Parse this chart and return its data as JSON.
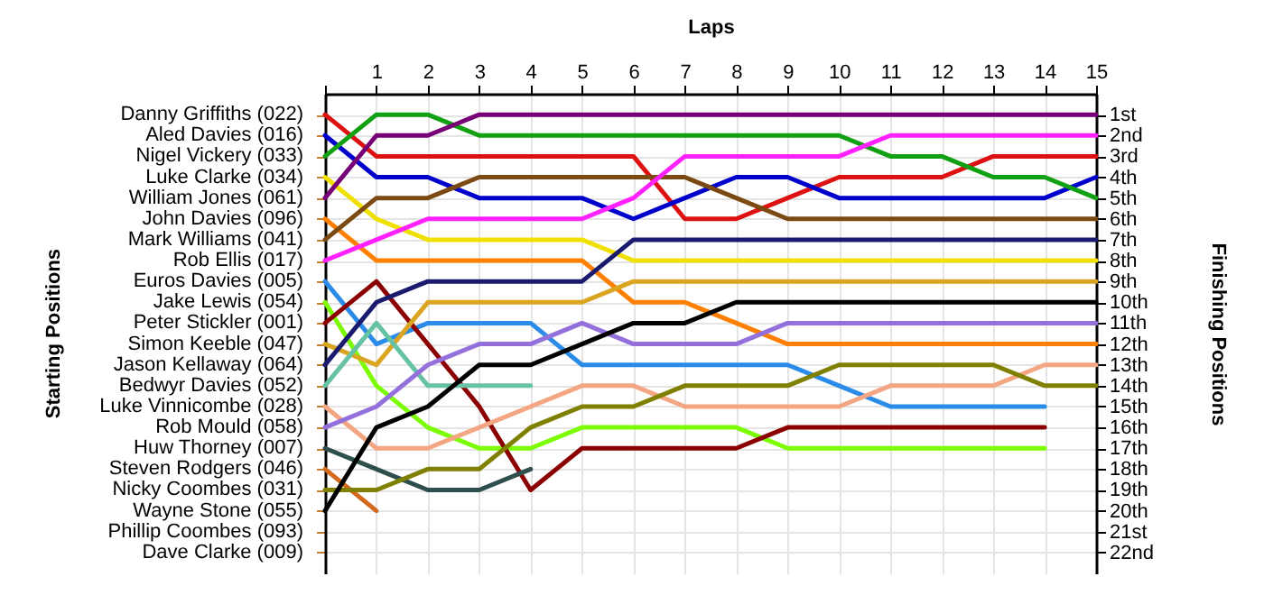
{
  "chart_data": {
    "type": "line",
    "xlabel": "Laps",
    "ylabel": "Finishing Positions",
    "x": [
      0,
      1,
      2,
      3,
      4,
      5,
      6,
      7,
      8,
      9,
      10,
      11,
      12,
      13,
      14,
      15
    ],
    "xlim": [
      0,
      15
    ],
    "xticks": [
      {
        "value": 0,
        "label": null
      },
      1,
      2,
      3,
      4,
      5,
      6,
      7,
      8,
      9,
      10,
      11,
      12,
      13,
      14,
      15
    ],
    "ylim": [
      23,
      0
    ],
    "yticks": [
      {
        "value": 1,
        "label": "1st"
      },
      {
        "value": 2,
        "label": "2nd"
      },
      {
        "value": 3,
        "label": "3rd"
      },
      {
        "value": 4,
        "label": "4th"
      },
      {
        "value": 5,
        "label": "5th"
      },
      {
        "value": 6,
        "label": "6th"
      },
      {
        "value": 7,
        "label": "7th"
      },
      {
        "value": 8,
        "label": "8th"
      },
      {
        "value": 9,
        "label": "9th"
      },
      {
        "value": 10,
        "label": "10th"
      },
      {
        "value": 11,
        "label": "11th"
      },
      {
        "value": 12,
        "label": "12th"
      },
      {
        "value": 13,
        "label": "13th"
      },
      {
        "value": 14,
        "label": "14th"
      },
      {
        "value": 15,
        "label": "15th"
      },
      {
        "value": 16,
        "label": "16th"
      },
      {
        "value": 17,
        "label": "17th"
      },
      {
        "value": 18,
        "label": "18th"
      },
      {
        "value": 19,
        "label": "19th"
      },
      {
        "value": 20,
        "label": "20th"
      },
      {
        "value": 21,
        "label": "21st"
      },
      {
        "value": 22,
        "label": "22nd"
      }
    ],
    "grid": true,
    "line_style": "solid",
    "annotations": [
      "Starting Positions",
      "Phillip Coombes (093)",
      "Dave Clarke (009)"
    ],
    "series": [
      {
        "name": "Danny Griffiths (022)",
        "color": "#dd1111",
        "values": [
          1,
          3,
          3,
          3,
          3,
          3,
          3,
          6,
          6,
          5,
          4,
          4,
          4,
          3,
          3,
          3
        ]
      },
      {
        "name": "Aled Davies (016)",
        "color": "#0000cc",
        "values": [
          2,
          4,
          4,
          5,
          5,
          5,
          6,
          5,
          4,
          4,
          5,
          5,
          5,
          5,
          5,
          4
        ]
      },
      {
        "name": "Nigel Vickery (033)",
        "color": "#11a011",
        "values": [
          3,
          1,
          1,
          2,
          2,
          2,
          2,
          2,
          2,
          2,
          2,
          3,
          3,
          4,
          4,
          5
        ]
      },
      {
        "name": "Luke Clarke (034)",
        "color": "#f0e000",
        "values": [
          4,
          6,
          7,
          7,
          7,
          7,
          8,
          8,
          8,
          8,
          8,
          8,
          8,
          8,
          8,
          8
        ]
      },
      {
        "name": "William Jones (061)",
        "color": "#770077",
        "values": [
          5,
          2,
          2,
          1,
          1,
          1,
          1,
          1,
          1,
          1,
          1,
          1,
          1,
          1,
          1,
          1
        ]
      },
      {
        "name": "John Davies (096)",
        "color": "#ff7f00",
        "values": [
          6,
          8,
          8,
          8,
          8,
          8,
          10,
          10,
          11,
          12,
          12,
          12,
          12,
          12,
          12,
          12
        ]
      },
      {
        "name": "Mark Williams (041)",
        "color": "#7b4a12",
        "values": [
          7,
          5,
          5,
          4,
          4,
          4,
          4,
          4,
          5,
          6,
          6,
          6,
          6,
          6,
          6,
          6
        ]
      },
      {
        "name": "Rob Ellis (017)",
        "color": "#ff22ff",
        "values": [
          8,
          7,
          6,
          6,
          6,
          6,
          5,
          3,
          3,
          3,
          3,
          2,
          2,
          2,
          2,
          2
        ]
      },
      {
        "name": "Euros Davies (005)",
        "color": "#2a8ce8",
        "values": [
          9,
          12,
          11,
          11,
          11,
          13,
          13,
          13,
          13,
          13,
          14,
          15,
          15,
          15,
          15,
          null
        ]
      },
      {
        "name": "Jake Lewis (054)",
        "color": "#7cfc00",
        "values": [
          10,
          14,
          16,
          17,
          17,
          16,
          16,
          16,
          16,
          17,
          17,
          17,
          17,
          17,
          17,
          null
        ]
      },
      {
        "name": "Peter Stickler (001)",
        "color": "#8b0000",
        "values": [
          11,
          9,
          12,
          15,
          19,
          17,
          17,
          17,
          17,
          16,
          16,
          16,
          16,
          16,
          16,
          null
        ]
      },
      {
        "name": "Simon Keeble (047)",
        "color": "#daa520",
        "values": [
          12,
          13,
          10,
          10,
          10,
          10,
          9,
          9,
          9,
          9,
          9,
          9,
          9,
          9,
          9,
          9
        ]
      },
      {
        "name": "Jason Kellaway (064)",
        "color": "#1a1a6e",
        "values": [
          13,
          10,
          9,
          9,
          9,
          9,
          7,
          7,
          7,
          7,
          7,
          7,
          7,
          7,
          7,
          7
        ]
      },
      {
        "name": "Bedwyr Davies (052)",
        "color": "#66c2a5",
        "values": [
          14,
          11,
          14,
          14,
          14,
          null,
          null,
          null,
          null,
          null,
          null,
          null,
          null,
          null,
          null,
          null
        ]
      },
      {
        "name": "Luke Vinnicombe (028)",
        "color": "#f4a582",
        "values": [
          15,
          17,
          17,
          16,
          15,
          14,
          14,
          15,
          15,
          15,
          15,
          14,
          14,
          14,
          13,
          13
        ]
      },
      {
        "name": "Rob Mould (058)",
        "color": "#9370db",
        "values": [
          16,
          15,
          13,
          12,
          12,
          11,
          12,
          12,
          12,
          11,
          11,
          11,
          11,
          11,
          11,
          11
        ]
      },
      {
        "name": "Huw Thorney (007)",
        "color": "#2f4f4f",
        "values": [
          17,
          18,
          19,
          19,
          18,
          null,
          null,
          null,
          null,
          null,
          null,
          null,
          null,
          null,
          null,
          null
        ]
      },
      {
        "name": "Steven Rodgers (046)",
        "color": "#d2691e",
        "values": [
          18,
          20,
          null,
          null,
          null,
          null,
          null,
          null,
          null,
          null,
          null,
          null,
          null,
          null,
          null,
          null
        ]
      },
      {
        "name": "Nicky Coombes (031)",
        "color": "#808000",
        "values": [
          19,
          19,
          18,
          18,
          16,
          15,
          15,
          14,
          14,
          14,
          13,
          13,
          13,
          13,
          14,
          14
        ]
      },
      {
        "name": "Wayne Stone (055)",
        "color": "#000000",
        "values": [
          20,
          16,
          15,
          13,
          13,
          12,
          11,
          11,
          10,
          10,
          10,
          10,
          10,
          10,
          10,
          10
        ]
      }
    ]
  }
}
